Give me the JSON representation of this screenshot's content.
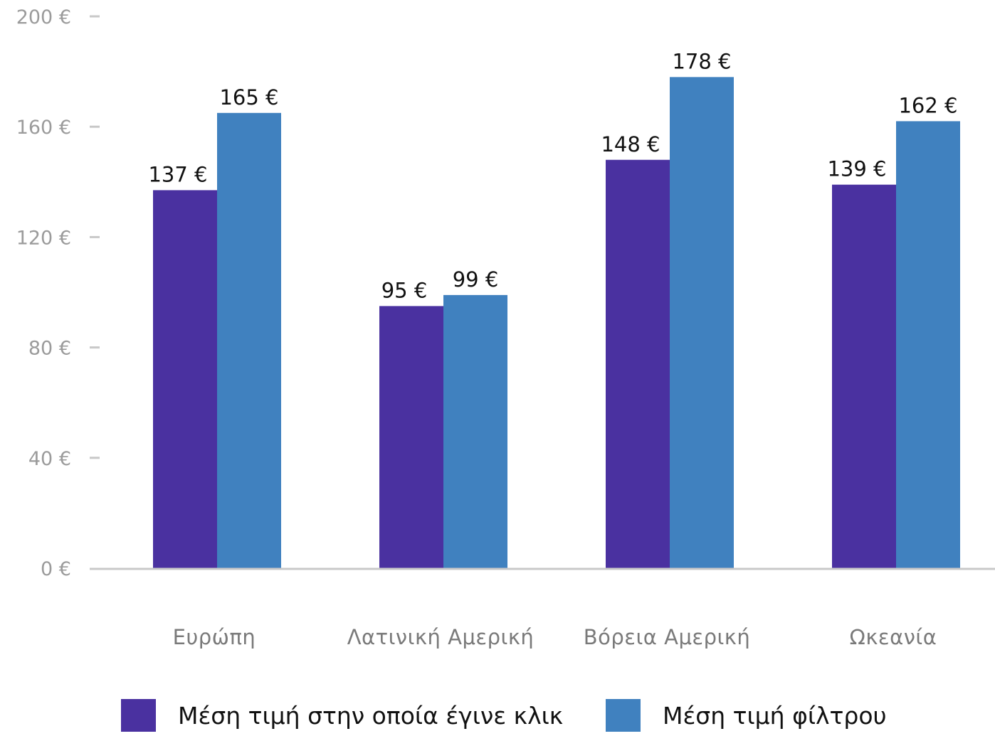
{
  "chart_data": {
    "type": "bar",
    "categories": [
      "Ευρώπη",
      "Λατινική Αμερική",
      "Βόρεια Αμερική",
      "Ωκεανία"
    ],
    "series": [
      {
        "name": "Μέση τιμή στην οποία έγινε κλικ",
        "values": [
          137,
          95,
          148,
          139
        ],
        "value_labels": [
          "137 €",
          "95 €",
          "148 €",
          "139 €"
        ],
        "color": "#4a31a0"
      },
      {
        "name": "Μέση τιμή φίλτρου",
        "values": [
          165,
          99,
          178,
          162
        ],
        "value_labels": [
          "165 €",
          "99 €",
          "178 €",
          "162 €"
        ],
        "color": "#4081bf"
      }
    ],
    "y_ticks": [
      0,
      40,
      80,
      120,
      160,
      200
    ],
    "y_tick_labels": [
      "0 €",
      "40 €",
      "80 €",
      "120 €",
      "160 €",
      "200 €"
    ],
    "ylim": [
      0,
      200
    ],
    "grid": false,
    "legend_position": "bottom",
    "axis_color": "#c8c8c8"
  }
}
